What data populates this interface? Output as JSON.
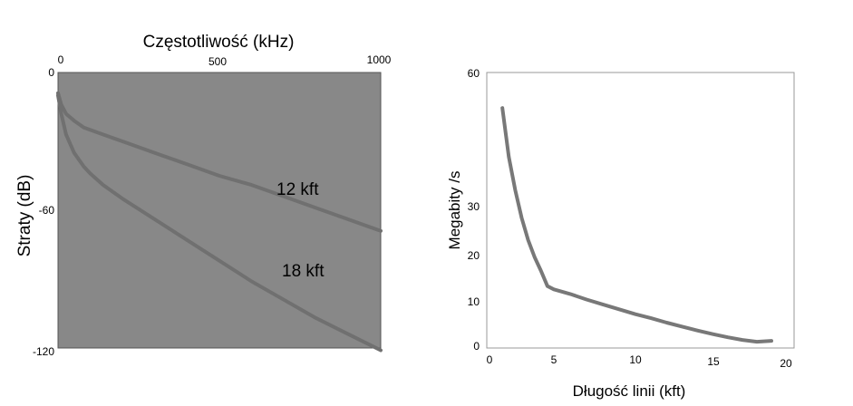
{
  "chart_data": [
    {
      "type": "line",
      "title": "Częstotliwość (kHz)",
      "xlabel": "",
      "ylabel": "Straty (dB)",
      "x_ticks": [
        "0",
        "500",
        "1000"
      ],
      "y_ticks": [
        "0",
        "-60",
        "-120"
      ],
      "xlim": [
        0,
        1000
      ],
      "ylim": [
        -120,
        0
      ],
      "plot_background": "#888888",
      "line_color": "#707070",
      "series": [
        {
          "name": "12 kft",
          "x": [
            0,
            10,
            25,
            50,
            80,
            120,
            200,
            300,
            400,
            500,
            600,
            700,
            800,
            900,
            1000
          ],
          "y": [
            -9,
            -14,
            -18,
            -21,
            -24,
            -26,
            -30,
            -35,
            -40,
            -45,
            -49,
            -54,
            -59,
            -64,
            -69
          ]
        },
        {
          "name": "18 kft",
          "x": [
            0,
            10,
            25,
            50,
            80,
            100,
            140,
            200,
            300,
            400,
            500,
            600,
            700,
            800,
            900,
            1000
          ],
          "y": [
            -10,
            -18,
            -27,
            -35,
            -41,
            -44,
            -49,
            -55,
            -64,
            -73,
            -82,
            -91,
            -99,
            -107,
            -114,
            -121
          ]
        }
      ]
    },
    {
      "type": "line",
      "title": "",
      "xlabel": "Długość linii (kft)",
      "ylabel": "Megabity /s",
      "x_ticks": [
        "0",
        "5",
        "10",
        "15",
        "20"
      ],
      "y_ticks": [
        "0",
        "10",
        "20",
        "30",
        "60"
      ],
      "y_tick_values": [
        0,
        10,
        20,
        30,
        60
      ],
      "xlim": [
        0,
        20
      ],
      "line_color": "#787878",
      "series": [
        {
          "name": "",
          "x": [
            1,
            1.5,
            2,
            2.5,
            3,
            3.5,
            4,
            4.5,
            5,
            6,
            7,
            8,
            9,
            10,
            11,
            12,
            13,
            14,
            15,
            16,
            17,
            18,
            19
          ],
          "y": [
            52,
            41,
            33.5,
            27.5,
            23,
            19.5,
            16.5,
            13.2,
            12.5,
            11.5,
            10.3,
            9.2,
            8.1,
            7,
            6.1,
            5.1,
            4.2,
            3.3,
            2.5,
            1.8,
            1.2,
            0.8,
            1
          ]
        }
      ]
    }
  ]
}
